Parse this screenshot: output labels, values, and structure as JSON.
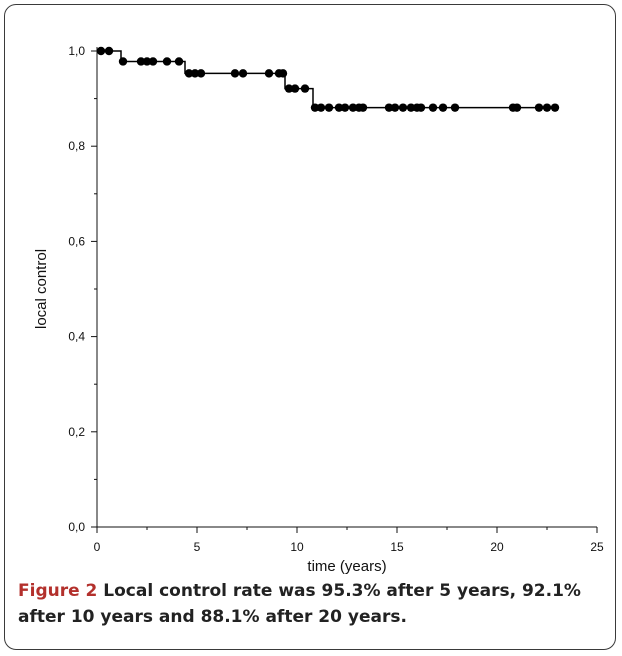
{
  "chart_data": {
    "type": "line",
    "xlabel": "time (years)",
    "ylabel": "local control",
    "xlim": [
      0,
      25
    ],
    "ylim": [
      0,
      1
    ],
    "x_ticks": [
      "0",
      "5",
      "10",
      "15",
      "20",
      "25"
    ],
    "y_ticks": [
      "0,0",
      "0,2",
      "0,4",
      "0,6",
      "0,8",
      "1,0"
    ],
    "grid": false,
    "step_curve": [
      [
        0,
        1.0
      ],
      [
        1.2,
        1.0
      ],
      [
        1.2,
        0.978
      ],
      [
        4.4,
        0.978
      ],
      [
        4.4,
        0.953
      ],
      [
        9.4,
        0.953
      ],
      [
        9.4,
        0.921
      ],
      [
        10.8,
        0.921
      ],
      [
        10.8,
        0.881
      ],
      [
        23.0,
        0.881
      ]
    ],
    "censored_points": [
      [
        0.2,
        1.0
      ],
      [
        0.6,
        1.0
      ],
      [
        1.3,
        0.978
      ],
      [
        2.2,
        0.978
      ],
      [
        2.5,
        0.978
      ],
      [
        2.8,
        0.978
      ],
      [
        3.5,
        0.978
      ],
      [
        4.1,
        0.978
      ],
      [
        4.6,
        0.953
      ],
      [
        4.9,
        0.953
      ],
      [
        5.2,
        0.953
      ],
      [
        6.9,
        0.953
      ],
      [
        7.3,
        0.953
      ],
      [
        8.6,
        0.953
      ],
      [
        9.1,
        0.953
      ],
      [
        9.3,
        0.953
      ],
      [
        9.6,
        0.921
      ],
      [
        9.9,
        0.921
      ],
      [
        10.4,
        0.921
      ],
      [
        10.9,
        0.881
      ],
      [
        11.2,
        0.881
      ],
      [
        11.6,
        0.881
      ],
      [
        12.1,
        0.881
      ],
      [
        12.4,
        0.881
      ],
      [
        12.8,
        0.881
      ],
      [
        13.1,
        0.881
      ],
      [
        13.3,
        0.881
      ],
      [
        14.6,
        0.881
      ],
      [
        14.9,
        0.881
      ],
      [
        15.3,
        0.881
      ],
      [
        15.7,
        0.881
      ],
      [
        16.0,
        0.881
      ],
      [
        16.2,
        0.881
      ],
      [
        16.8,
        0.881
      ],
      [
        17.3,
        0.881
      ],
      [
        17.9,
        0.881
      ],
      [
        20.8,
        0.881
      ],
      [
        21.0,
        0.881
      ],
      [
        22.1,
        0.881
      ],
      [
        22.5,
        0.881
      ],
      [
        22.9,
        0.881
      ]
    ]
  },
  "caption": {
    "label": "Figure 2",
    "text": " Local control rate was 95.3% after 5 years, 92.1% after 10 years and 88.1% after 20 years."
  }
}
